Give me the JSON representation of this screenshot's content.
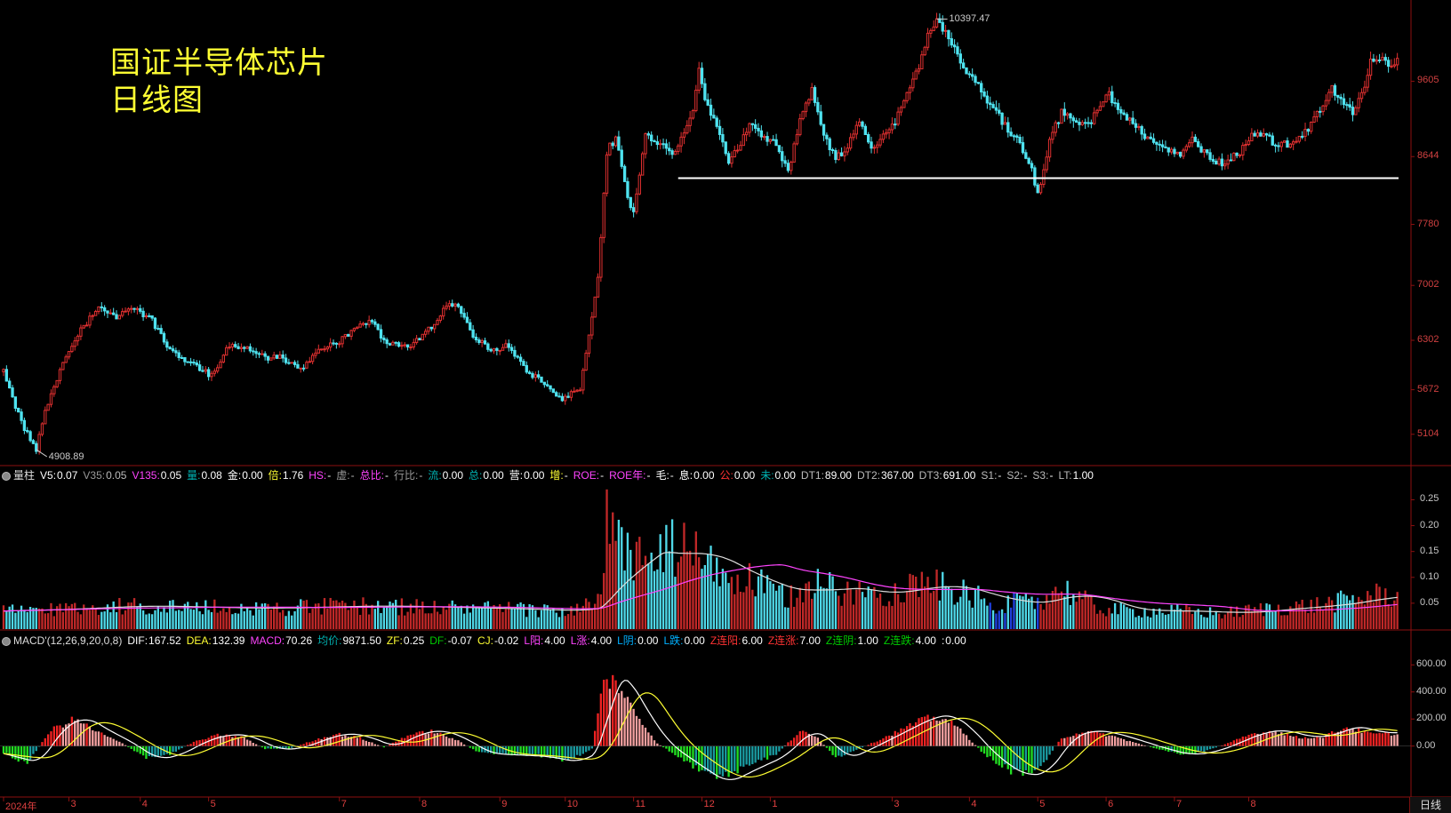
{
  "overlay": {
    "line1": "国证半导体芯片",
    "line2": "日线图"
  },
  "main_annotations": {
    "high": "10397.47",
    "low": "4908.89"
  },
  "vol_indicator": {
    "name": "量柱",
    "items": [
      {
        "label": "V5:",
        "value": "0.07",
        "color": "#ffffff"
      },
      {
        "label": "V35:",
        "value": "0.05",
        "color": "#999999"
      },
      {
        "label": "V135:",
        "value": "0.05",
        "color": "#ff44ff"
      },
      {
        "label": "量:",
        "value": "0.08",
        "color": "#00b0b0"
      },
      {
        "label": "金:",
        "value": "0.00",
        "color": "#ffffff"
      },
      {
        "label": "倍:",
        "value": "1.76",
        "color": "#ffff33"
      },
      {
        "label": "HS:",
        "value": "-",
        "color": "#ff44ff"
      },
      {
        "label": "虚:",
        "value": "-",
        "color": "#999999"
      },
      {
        "label": "总比:",
        "value": "-",
        "color": "#ff44ff"
      },
      {
        "label": "行比:",
        "value": "-",
        "color": "#999999"
      },
      {
        "label": "流:",
        "value": "0.00",
        "color": "#00b0b0"
      },
      {
        "label": "总:",
        "value": "0.00",
        "color": "#00b0b0"
      },
      {
        "label": "营:",
        "value": "0.00",
        "color": "#ffffff"
      },
      {
        "label": "增:",
        "value": "-",
        "color": "#ffff33"
      },
      {
        "label": "ROE:",
        "value": "-",
        "color": "#ff44ff"
      },
      {
        "label": "ROE年:",
        "value": "-",
        "color": "#ff44ff"
      },
      {
        "label": "毛:",
        "value": "-",
        "color": "#ffffff"
      },
      {
        "label": "息:",
        "value": "0.00",
        "color": "#ffffff"
      },
      {
        "label": "公:",
        "value": "0.00",
        "color": "#ff3333"
      },
      {
        "label": "未:",
        "value": "0.00",
        "color": "#00b0b0"
      },
      {
        "label": "DT1:",
        "value": "89.00",
        "color": "#bbbbbb"
      },
      {
        "label": "DT2:",
        "value": "367.00",
        "color": "#bbbbbb"
      },
      {
        "label": "DT3:",
        "value": "691.00",
        "color": "#bbbbbb"
      },
      {
        "label": "S1:",
        "value": "-",
        "color": "#bbbbbb"
      },
      {
        "label": "S2:",
        "value": "-",
        "color": "#bbbbbb"
      },
      {
        "label": "S3:",
        "value": "-",
        "color": "#bbbbbb"
      },
      {
        "label": "LT:",
        "value": "1.00",
        "color": "#bbbbbb"
      }
    ]
  },
  "macd_indicator": {
    "name": "MACD'(12,26,9,20,0,8)",
    "items": [
      {
        "label": "DIF:",
        "value": "167.52",
        "color": "#ffffff"
      },
      {
        "label": "DEA:",
        "value": "132.39",
        "color": "#ffff33"
      },
      {
        "label": "MACD:",
        "value": "70.26",
        "color": "#ff44ff"
      },
      {
        "label": "均价:",
        "value": "9871.50",
        "color": "#00b0b0"
      },
      {
        "label": "ZF:",
        "value": "0.25",
        "color": "#ffff33"
      },
      {
        "label": "DF:",
        "value": "-0.07",
        "color": "#00cc00"
      },
      {
        "label": "CJ:",
        "value": "-0.02",
        "color": "#ffff33"
      },
      {
        "label": "L阳:",
        "value": "4.00",
        "color": "#ff44ff"
      },
      {
        "label": "L涨:",
        "value": "4.00",
        "color": "#ff44ff"
      },
      {
        "label": "L阴:",
        "value": "0.00",
        "color": "#00b0ff"
      },
      {
        "label": "L跌:",
        "value": "0.00",
        "color": "#00b0ff"
      },
      {
        "label": "Z连阳:",
        "value": "6.00",
        "color": "#ff3333"
      },
      {
        "label": "Z连涨:",
        "value": "7.00",
        "color": "#ff3333"
      },
      {
        "label": "Z连阴:",
        "value": "1.00",
        "color": "#00cc00"
      },
      {
        "label": "Z连跌:",
        "value": "4.00",
        "color": "#00cc00"
      },
      {
        "label": ":",
        "value": "0.00",
        "color": "#ffffff"
      }
    ]
  },
  "period_label": "日线",
  "chart_data": [
    {
      "type": "candlestick",
      "name": "国证半导体芯片",
      "y_ticks": [
        5104,
        5672,
        6302,
        7002,
        7780,
        8644,
        9605
      ],
      "ylim": [
        4750,
        10550
      ],
      "support_level": 8370,
      "points": [
        [
          0,
          5900
        ],
        [
          6,
          5250
        ],
        [
          11,
          4909
        ],
        [
          14,
          5400
        ],
        [
          20,
          6000
        ],
        [
          26,
          6450
        ],
        [
          32,
          6700
        ],
        [
          38,
          6600
        ],
        [
          44,
          6700
        ],
        [
          50,
          6550
        ],
        [
          55,
          6250
        ],
        [
          60,
          6050
        ],
        [
          65,
          5960
        ],
        [
          70,
          5850
        ],
        [
          76,
          6250
        ],
        [
          82,
          6200
        ],
        [
          88,
          6080
        ],
        [
          94,
          6080
        ],
        [
          100,
          5920
        ],
        [
          106,
          6180
        ],
        [
          112,
          6260
        ],
        [
          118,
          6450
        ],
        [
          124,
          6570
        ],
        [
          128,
          6300
        ],
        [
          132,
          6250
        ],
        [
          138,
          6250
        ],
        [
          144,
          6480
        ],
        [
          150,
          6800
        ],
        [
          154,
          6680
        ],
        [
          158,
          6350
        ],
        [
          164,
          6180
        ],
        [
          170,
          6230
        ],
        [
          176,
          5900
        ],
        [
          182,
          5760
        ],
        [
          188,
          5550
        ],
        [
          194,
          5700
        ],
        [
          200,
          7100
        ],
        [
          203,
          8700
        ],
        [
          206,
          8900
        ],
        [
          209,
          8300
        ],
        [
          212,
          7900
        ],
        [
          216,
          8900
        ],
        [
          220,
          8800
        ],
        [
          226,
          8700
        ],
        [
          232,
          9200
        ],
        [
          234,
          9780
        ],
        [
          236,
          9350
        ],
        [
          240,
          9000
        ],
        [
          244,
          8600
        ],
        [
          248,
          8800
        ],
        [
          252,
          9080
        ],
        [
          256,
          8850
        ],
        [
          260,
          8800
        ],
        [
          264,
          8450
        ],
        [
          268,
          9150
        ],
        [
          272,
          9500
        ],
        [
          276,
          8950
        ],
        [
          280,
          8600
        ],
        [
          284,
          8800
        ],
        [
          288,
          9100
        ],
        [
          292,
          8700
        ],
        [
          296,
          8900
        ],
        [
          300,
          9100
        ],
        [
          304,
          9500
        ],
        [
          308,
          9800
        ],
        [
          312,
          10300
        ],
        [
          314,
          10397
        ],
        [
          318,
          10200
        ],
        [
          322,
          9800
        ],
        [
          326,
          9700
        ],
        [
          330,
          9400
        ],
        [
          334,
          9200
        ],
        [
          340,
          8900
        ],
        [
          345,
          8600
        ],
        [
          348,
          8150
        ],
        [
          352,
          8850
        ],
        [
          356,
          9200
        ],
        [
          360,
          9100
        ],
        [
          366,
          9100
        ],
        [
          372,
          9450
        ],
        [
          376,
          9200
        ],
        [
          380,
          9050
        ],
        [
          384,
          8900
        ],
        [
          388,
          8800
        ],
        [
          392,
          8700
        ],
        [
          396,
          8650
        ],
        [
          400,
          8850
        ],
        [
          404,
          8700
        ],
        [
          408,
          8550
        ],
        [
          412,
          8600
        ],
        [
          416,
          8700
        ],
        [
          420,
          8900
        ],
        [
          424,
          8950
        ],
        [
          428,
          8800
        ],
        [
          432,
          8800
        ],
        [
          436,
          8900
        ],
        [
          440,
          9050
        ],
        [
          444,
          9300
        ],
        [
          447,
          9500
        ],
        [
          450,
          9400
        ],
        [
          454,
          9200
        ],
        [
          458,
          9500
        ],
        [
          460,
          9850
        ]
      ]
    },
    {
      "type": "bar",
      "name": "量柱",
      "y_ticks": [
        0.05,
        0.1,
        0.15,
        0.2,
        0.25
      ],
      "ylim": [
        0,
        0.28
      ],
      "points": [
        [
          0,
          0.035
        ],
        [
          40,
          0.045
        ],
        [
          80,
          0.04
        ],
        [
          120,
          0.045
        ],
        [
          160,
          0.04
        ],
        [
          190,
          0.035
        ],
        [
          200,
          0.05
        ],
        [
          203,
          0.15
        ],
        [
          206,
          0.17
        ],
        [
          212,
          0.14
        ],
        [
          220,
          0.14
        ],
        [
          228,
          0.16
        ],
        [
          236,
          0.13
        ],
        [
          244,
          0.1
        ],
        [
          252,
          0.09
        ],
        [
          264,
          0.06
        ],
        [
          272,
          0.09
        ],
        [
          284,
          0.07
        ],
        [
          296,
          0.07
        ],
        [
          310,
          0.09
        ],
        [
          322,
          0.07
        ],
        [
          334,
          0.05
        ],
        [
          346,
          0.05
        ],
        [
          356,
          0.08
        ],
        [
          368,
          0.04
        ],
        [
          380,
          0.035
        ],
        [
          396,
          0.035
        ],
        [
          410,
          0.03
        ],
        [
          426,
          0.04
        ],
        [
          440,
          0.045
        ],
        [
          452,
          0.055
        ],
        [
          460,
          0.065
        ]
      ]
    },
    {
      "type": "bar",
      "name": "MACD'(12,26,9,20,0,8)",
      "y_ticks": [
        0,
        200,
        400,
        600
      ],
      "ylim": [
        -350,
        720
      ],
      "points": [
        [
          0,
          -50
        ],
        [
          8,
          -130
        ],
        [
          16,
          120
        ],
        [
          24,
          200
        ],
        [
          32,
          100
        ],
        [
          40,
          20
        ],
        [
          48,
          -90
        ],
        [
          56,
          -60
        ],
        [
          64,
          30
        ],
        [
          72,
          80
        ],
        [
          80,
          70
        ],
        [
          88,
          -20
        ],
        [
          96,
          -20
        ],
        [
          104,
          40
        ],
        [
          112,
          90
        ],
        [
          120,
          60
        ],
        [
          128,
          -10
        ],
        [
          136,
          80
        ],
        [
          144,
          110
        ],
        [
          152,
          50
        ],
        [
          160,
          -50
        ],
        [
          170,
          -60
        ],
        [
          180,
          -70
        ],
        [
          190,
          -110
        ],
        [
          198,
          -20
        ],
        [
          202,
          480
        ],
        [
          206,
          480
        ],
        [
          212,
          260
        ],
        [
          220,
          20
        ],
        [
          230,
          -120
        ],
        [
          240,
          -250
        ],
        [
          250,
          -150
        ],
        [
          260,
          -60
        ],
        [
          268,
          110
        ],
        [
          274,
          60
        ],
        [
          280,
          -90
        ],
        [
          286,
          -40
        ],
        [
          294,
          40
        ],
        [
          302,
          120
        ],
        [
          310,
          200
        ],
        [
          316,
          210
        ],
        [
          322,
          120
        ],
        [
          330,
          -60
        ],
        [
          340,
          -200
        ],
        [
          348,
          -180
        ],
        [
          356,
          60
        ],
        [
          364,
          110
        ],
        [
          372,
          80
        ],
        [
          380,
          30
        ],
        [
          388,
          -20
        ],
        [
          396,
          -60
        ],
        [
          404,
          -40
        ],
        [
          412,
          20
        ],
        [
          420,
          90
        ],
        [
          428,
          110
        ],
        [
          436,
          60
        ],
        [
          444,
          70
        ],
        [
          452,
          140
        ],
        [
          460,
          90
        ]
      ]
    }
  ],
  "x_axis": {
    "labels": [
      {
        "idx": 0,
        "text": "2024年"
      },
      {
        "idx": 22,
        "text": "3"
      },
      {
        "idx": 46,
        "text": "4"
      },
      {
        "idx": 69,
        "text": "5"
      },
      {
        "idx": 113,
        "text": "7"
      },
      {
        "idx": 140,
        "text": "8"
      },
      {
        "idx": 167,
        "text": "9"
      },
      {
        "idx": 189,
        "text": "10"
      },
      {
        "idx": 212,
        "text": "11"
      },
      {
        "idx": 235,
        "text": "12"
      },
      {
        "idx": 258,
        "text": "1"
      },
      {
        "idx": 299,
        "text": "3"
      },
      {
        "idx": 325,
        "text": "4"
      },
      {
        "idx": 348,
        "text": "5"
      },
      {
        "idx": 371,
        "text": "6"
      },
      {
        "idx": 394,
        "text": "7"
      },
      {
        "idx": 419,
        "text": "8"
      }
    ]
  }
}
